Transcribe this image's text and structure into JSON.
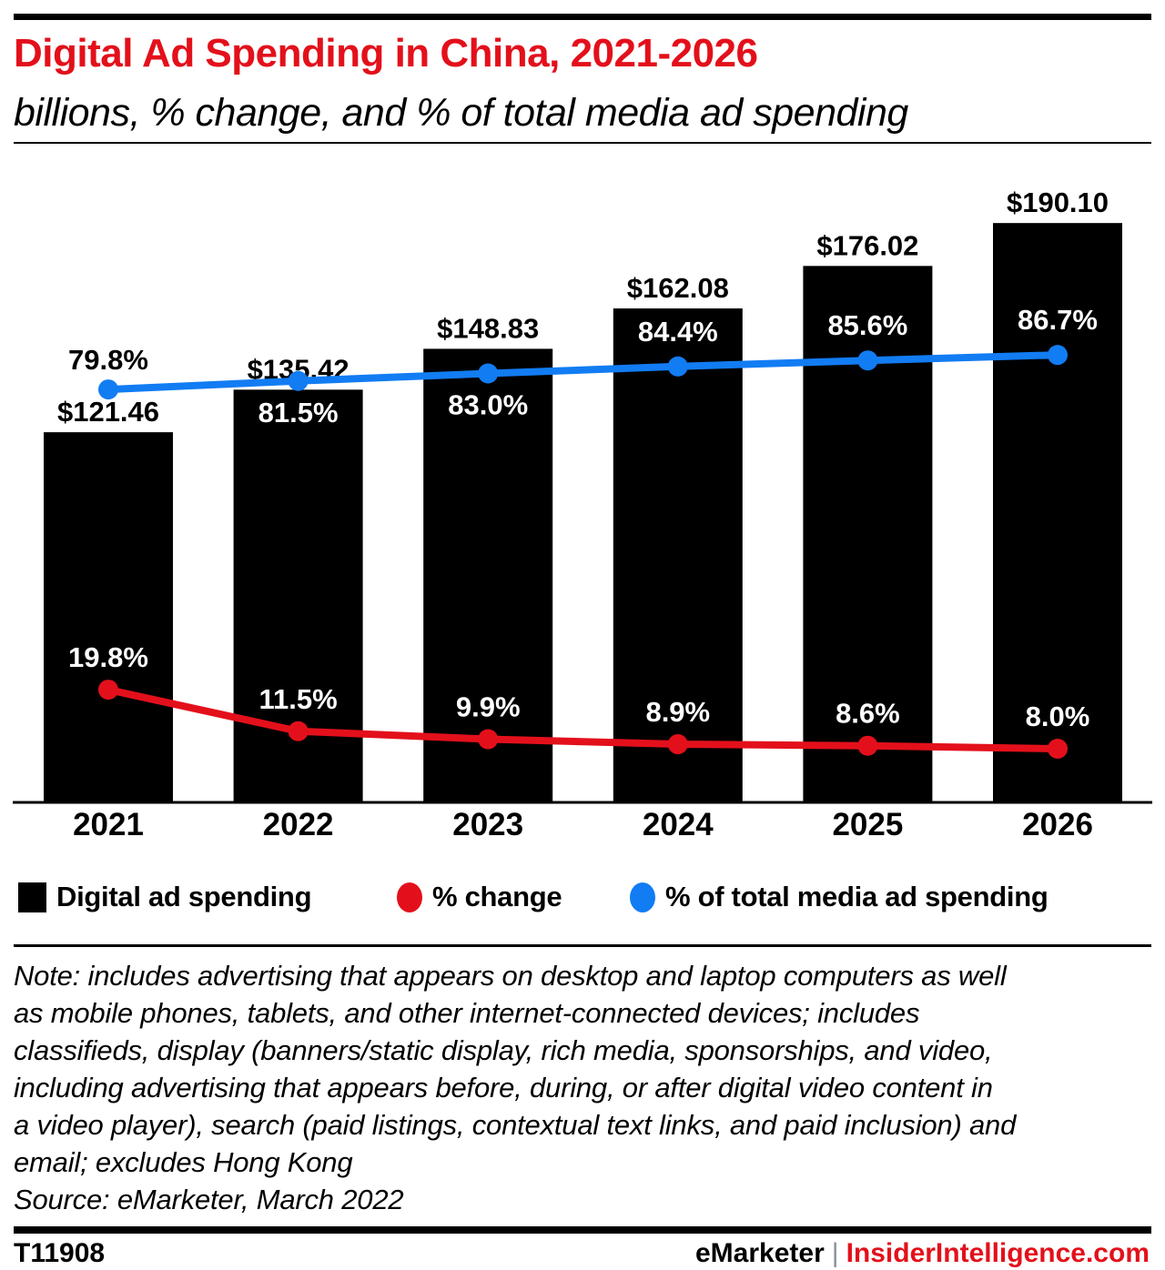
{
  "header": {
    "title": "Digital Ad Spending in China, 2021-2026",
    "subtitle": "billions, % change, and % of total media ad spending"
  },
  "chart_data": {
    "type": "bar",
    "combo": "bars with two overlaid line series on a shared % axis",
    "categories": [
      "2021",
      "2022",
      "2023",
      "2024",
      "2025",
      "2026"
    ],
    "series": [
      {
        "name": "Digital ad spending",
        "type": "bar",
        "unit": "billions of US dollars",
        "values": [
          121.46,
          135.42,
          148.83,
          162.08,
          176.02,
          190.1
        ],
        "labels": [
          "$121.46",
          "$135.42",
          "$148.83",
          "$162.08",
          "$176.02",
          "$190.10"
        ],
        "color": "#000000"
      },
      {
        "name": "% change",
        "type": "line",
        "values": [
          19.8,
          11.5,
          9.9,
          8.9,
          8.6,
          8.0
        ],
        "labels": [
          "19.8%",
          "11.5%",
          "9.9%",
          "8.9%",
          "8.6%",
          "8.0%"
        ],
        "color": "#e3101b"
      },
      {
        "name": "% of total media ad spending",
        "type": "line",
        "values": [
          79.8,
          81.5,
          83.0,
          84.4,
          85.6,
          86.7
        ],
        "labels": [
          "79.8%",
          "81.5%",
          "83.0%",
          "84.4%",
          "85.6%",
          "86.7%"
        ],
        "color": "#127cf3"
      }
    ],
    "title": "Digital Ad Spending in China, 2021-2026",
    "subtitle": "billions, % change, and % of total media ad spending",
    "xlabel": "",
    "ylabel": "",
    "grid": false,
    "legend_position": "bottom",
    "data_labels": true
  },
  "legend": {
    "items": [
      {
        "label": "Digital ad spending",
        "color": "#000000",
        "shape": "square"
      },
      {
        "label": "% change",
        "color": "#e3101b",
        "shape": "circle"
      },
      {
        "label": "% of total media ad spending",
        "color": "#127cf3",
        "shape": "circle"
      }
    ]
  },
  "note": {
    "lines": [
      "Note: includes advertising that appears on desktop and laptop computers as well",
      "as mobile phones, tablets, and other internet-connected devices; includes",
      "classifieds, display (banners/static display, rich media, sponsorships, and video,",
      "including advertising that appears before, during, or after digital video content in",
      "a video player), search (paid listings, contextual text links, and paid inclusion) and",
      "email; excludes Hong Kong"
    ],
    "source": "Source: eMarketer, March 2022"
  },
  "footer": {
    "chart_id": "T11908",
    "brand": "eMarketer",
    "separator": "|",
    "site": "InsiderIntelligence.com"
  },
  "colors": {
    "accent_red": "#e3101b",
    "accent_blue": "#127cf3",
    "bar_black": "#000000",
    "pipe_gray": "#8a8f98"
  }
}
